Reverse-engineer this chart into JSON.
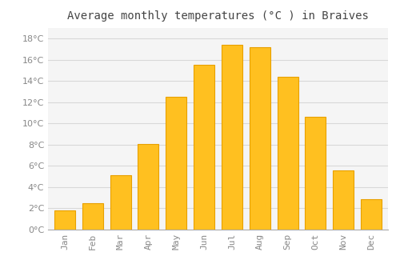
{
  "title": "Average monthly temperatures (°C ) in Braives",
  "months": [
    "Jan",
    "Feb",
    "Mar",
    "Apr",
    "May",
    "Jun",
    "Jul",
    "Aug",
    "Sep",
    "Oct",
    "Nov",
    "Dec"
  ],
  "values": [
    1.8,
    2.5,
    5.1,
    8.1,
    12.5,
    15.5,
    17.4,
    17.2,
    14.4,
    10.6,
    5.6,
    2.9
  ],
  "bar_color": "#FFC020",
  "bar_edge_color": "#E8A000",
  "background_color": "#ffffff",
  "plot_bg_color": "#f5f5f5",
  "grid_color": "#d8d8d8",
  "ylim": [
    0,
    19
  ],
  "yticks": [
    0,
    2,
    4,
    6,
    8,
    10,
    12,
    14,
    16,
    18
  ],
  "title_fontsize": 10,
  "tick_fontsize": 8,
  "tick_color": "#888888",
  "title_color": "#444444",
  "font_family": "monospace",
  "bar_width": 0.75
}
